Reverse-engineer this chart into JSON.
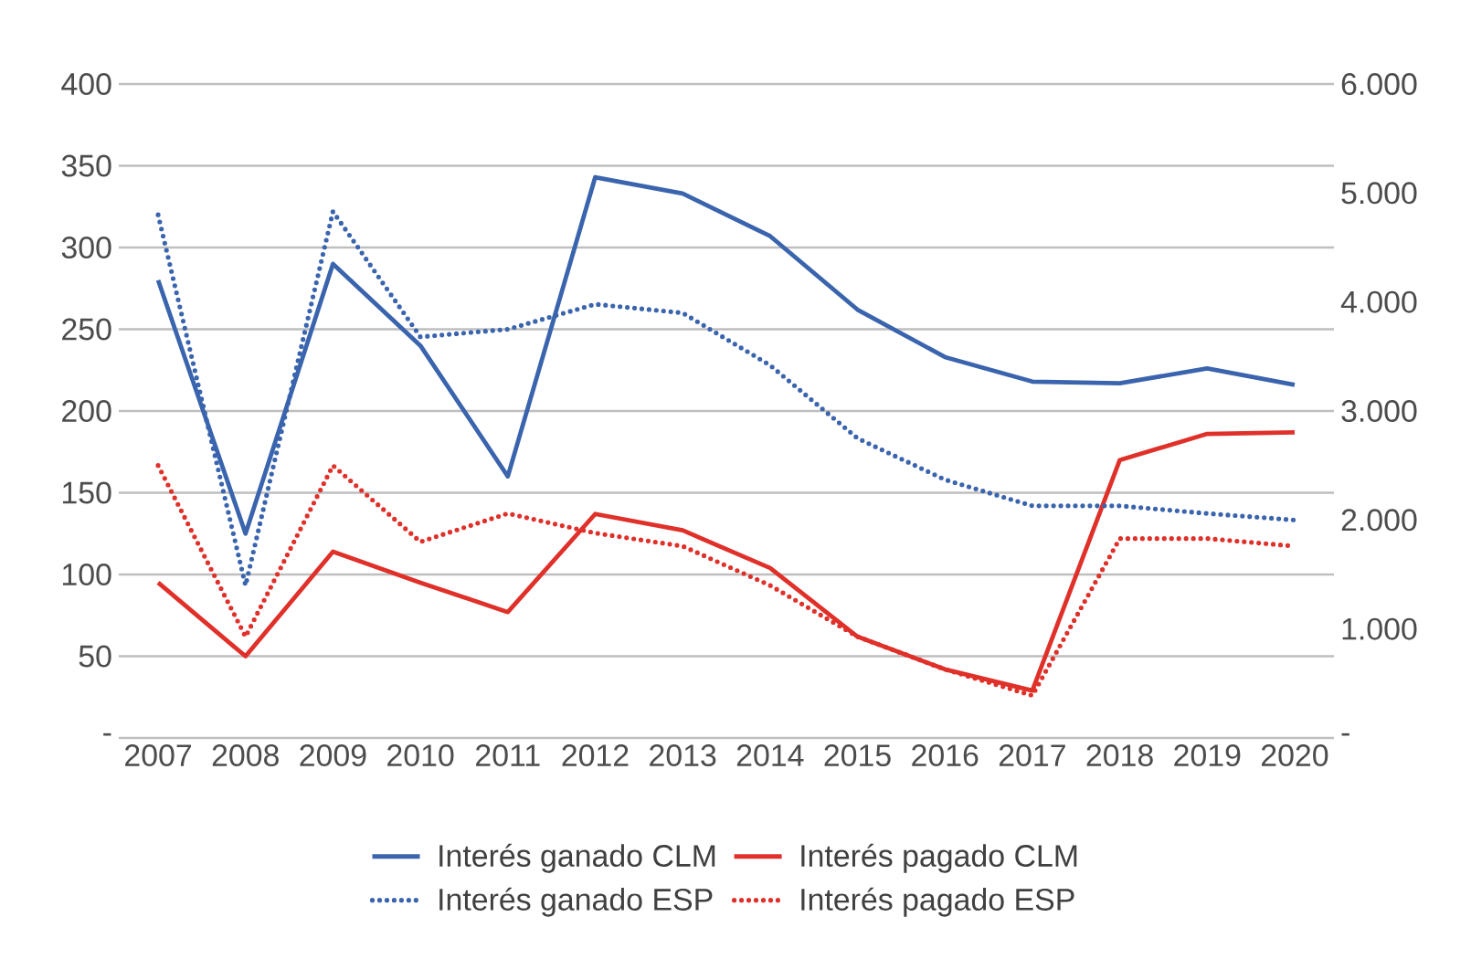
{
  "chart_data": {
    "type": "line",
    "categories": [
      "2007",
      "2008",
      "2009",
      "2010",
      "2011",
      "2012",
      "2013",
      "2014",
      "2015",
      "2016",
      "2017",
      "2018",
      "2019",
      "2020"
    ],
    "series": [
      {
        "name": "Interés ganado CLM",
        "color": "#3a64ad",
        "line_style": "solid",
        "values": [
          280,
          125,
          290,
          240,
          160,
          343,
          333,
          307,
          262,
          233,
          218,
          217,
          226,
          216
        ]
      },
      {
        "name": "Interés pagado CLM",
        "color": "#e0302a",
        "line_style": "solid",
        "values": [
          95,
          50,
          114,
          95,
          77,
          137,
          127,
          104,
          62,
          42,
          29,
          170,
          186,
          187
        ]
      },
      {
        "name": "Interés ganado ESP",
        "color": "#3a64ad",
        "line_style": "dotted",
        "axis": "y2",
        "values": [
          4800,
          1400,
          4830,
          3680,
          3750,
          3980,
          3900,
          3420,
          2750,
          2370,
          2130,
          2130,
          2060,
          2000
        ]
      },
      {
        "name": "Interés pagado ESP",
        "color": "#e0302a",
        "line_style": "dotted",
        "axis": "y2",
        "values": [
          2500,
          930,
          2500,
          1800,
          2060,
          1880,
          1760,
          1400,
          930,
          630,
          390,
          1830,
          1830,
          1760
        ]
      }
    ],
    "ylim": [
      0,
      400
    ],
    "yticks": [
      {
        "value": 0,
        "label": "-"
      },
      50,
      100,
      150,
      200,
      250,
      300,
      350,
      400
    ],
    "y2lim": [
      0,
      6000
    ],
    "y2ticks": [
      {
        "value": 0,
        "label": "-"
      },
      {
        "value": 1000,
        "label": "1.000"
      },
      {
        "value": 2000,
        "label": "2.000"
      },
      {
        "value": 3000,
        "label": "3.000"
      },
      {
        "value": 4000,
        "label": "4.000"
      },
      {
        "value": 5000,
        "label": "5.000"
      },
      {
        "value": 6000,
        "label": "6.000"
      }
    ],
    "grid": "y",
    "legend": "bottom"
  }
}
